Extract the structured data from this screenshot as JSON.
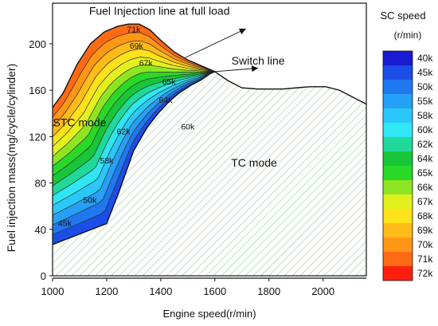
{
  "chart_data": {
    "type": "contour",
    "xlabel": "Engine speed(r/min)",
    "ylabel": "Fuel injection mass(mg/cycle/cylinder)",
    "xlim": [
      1000,
      2160
    ],
    "ylim": [
      0,
      235
    ],
    "xticks": [
      "1000",
      "1200",
      "1400",
      "1600",
      "1800",
      "2000"
    ],
    "yticks": [
      "0",
      "40",
      "80",
      "120",
      "160",
      "200"
    ],
    "legend": {
      "title": "SC speed",
      "unit": "(r/min)",
      "position": "right",
      "levels": [
        {
          "label": "40k",
          "color": "#1a1ad0"
        },
        {
          "label": "45k",
          "color": "#1c4de6"
        },
        {
          "label": "50k",
          "color": "#1f78f0"
        },
        {
          "label": "55k",
          "color": "#25a0f4"
        },
        {
          "label": "58k",
          "color": "#2ac8f8"
        },
        {
          "label": "60k",
          "color": "#2fe6f2"
        },
        {
          "label": "62k",
          "color": "#20d89a"
        },
        {
          "label": "64k",
          "color": "#19c63a"
        },
        {
          "label": "65k",
          "color": "#2ad828"
        },
        {
          "label": "66k",
          "color": "#8ee622"
        },
        {
          "label": "67k",
          "color": "#e2f01e"
        },
        {
          "label": "68k",
          "color": "#ffe21a"
        },
        {
          "label": "69k",
          "color": "#ffbc18"
        },
        {
          "label": "70k",
          "color": "#ff9616"
        },
        {
          "label": "71k",
          "color": "#ff6a14"
        },
        {
          "label": "72k",
          "color": "#ff1f10"
        }
      ]
    },
    "full_load_line": [
      [
        1000,
        27
      ],
      [
        1100,
        36
      ],
      [
        1200,
        45
      ],
      [
        1245,
        72
      ],
      [
        1300,
        108
      ],
      [
        1350,
        128
      ],
      [
        1390,
        140
      ],
      [
        1430,
        150
      ],
      [
        1470,
        158
      ],
      [
        1510,
        164
      ],
      [
        1550,
        169
      ],
      [
        1580,
        174
      ],
      [
        1600,
        176
      ],
      [
        1650,
        168
      ],
      [
        1700,
        162
      ],
      [
        1760,
        161
      ],
      [
        1850,
        161
      ],
      [
        1950,
        163
      ],
      [
        2010,
        163
      ],
      [
        2060,
        160
      ],
      [
        2160,
        148
      ]
    ],
    "full_load_upper": [
      [
        1000,
        145
      ],
      [
        1040,
        158
      ],
      [
        1090,
        182
      ],
      [
        1140,
        200
      ],
      [
        1190,
        210
      ],
      [
        1240,
        215
      ],
      [
        1280,
        217
      ],
      [
        1320,
        217
      ],
      [
        1360,
        212
      ],
      [
        1400,
        203
      ],
      [
        1450,
        193
      ],
      [
        1500,
        186
      ],
      [
        1560,
        180
      ],
      [
        1600,
        176
      ]
    ],
    "contour_labels": [
      {
        "text": "71k",
        "x": 1300,
        "y": 210
      },
      {
        "text": "69k",
        "x": 1310,
        "y": 196
      },
      {
        "text": "67k",
        "x": 1345,
        "y": 181
      },
      {
        "text": "65k",
        "x": 1430,
        "y": 165
      },
      {
        "text": "64k",
        "x": 1418,
        "y": 149
      },
      {
        "text": "62k",
        "x": 1262,
        "y": 122
      },
      {
        "text": "60k",
        "x": 1500,
        "y": 126
      },
      {
        "text": "58k",
        "x": 1200,
        "y": 97
      },
      {
        "text": "50k",
        "x": 1138,
        "y": 63
      },
      {
        "text": "45k",
        "x": 1045,
        "y": 43
      }
    ],
    "annotations": [
      {
        "text": "Fuel Injection line at full load",
        "x": 1395,
        "y": 225
      },
      {
        "text": "Switch line",
        "x": 1760,
        "y": 182
      },
      {
        "text": "STC mode",
        "x": 1100,
        "y": 129
      },
      {
        "text": "TC mode",
        "x": 1745,
        "y": 94
      }
    ]
  }
}
